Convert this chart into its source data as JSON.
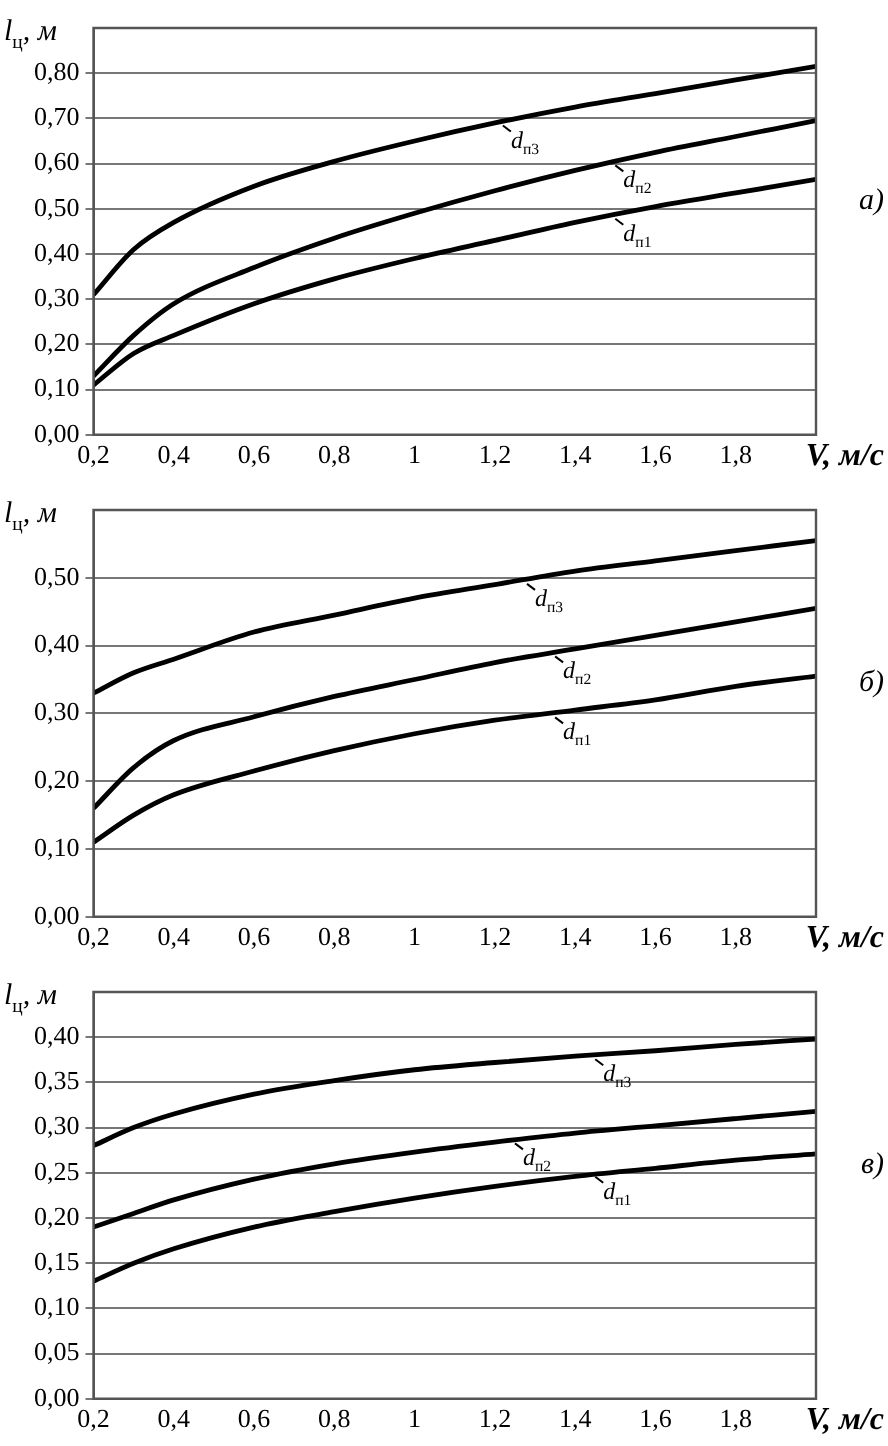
{
  "chart_data": [
    {
      "type": "line",
      "xticks": [
        {
          "value": 0.2,
          "label": "0,2"
        },
        {
          "value": 0.4,
          "label": "0,4"
        },
        {
          "value": 0.6,
          "label": "0,6"
        },
        {
          "value": 0.8,
          "label": "0,8"
        },
        {
          "value": 1,
          "label": "1"
        },
        {
          "value": 1.2,
          "label": "1,2"
        },
        {
          "value": 1.4,
          "label": "1,4"
        },
        {
          "value": 1.6,
          "label": "1,6"
        },
        {
          "value": 1.8,
          "label": "1,8"
        }
      ],
      "annotations": [
        "а)",
        {
          "text": "d$_{п1}$",
          "x": 1.5,
          "y": 0.487
        },
        {
          "text": "d$_{п2}$",
          "x": 1.5,
          "y": 0.605
        },
        {
          "text": "d$_{п3}$",
          "x": 1.22,
          "y": 0.693
        }
      ],
      "xlabel": "V, м/с",
      "ylabel": "l$_{ц}$, м",
      "x": [
        0.2,
        0.3,
        0.4,
        0.6,
        0.8,
        1.0,
        1.2,
        1.4,
        1.6,
        1.8,
        2.0
      ],
      "series": [
        {
          "color": "#000000",
          "values": [
            0.11,
            0.18,
            0.22,
            0.29,
            0.345,
            0.39,
            0.43,
            0.47,
            0.505,
            0.535,
            0.565
          ]
        },
        {
          "color": "#000000",
          "values": [
            0.13,
            0.22,
            0.29,
            0.37,
            0.435,
            0.49,
            0.54,
            0.585,
            0.625,
            0.66,
            0.695
          ]
        },
        {
          "color": "#000000",
          "values": [
            0.31,
            0.41,
            0.47,
            0.55,
            0.605,
            0.65,
            0.69,
            0.725,
            0.755,
            0.785,
            0.815
          ]
        }
      ],
      "xlim": [
        0.2,
        2.0
      ],
      "ylim": [
        0,
        0.9
      ],
      "yticks": [
        {
          "value": 0,
          "label": "0,00"
        },
        {
          "value": 0.1,
          "label": "0,10"
        },
        {
          "value": 0.2,
          "label": "0,20"
        },
        {
          "value": 0.3,
          "label": "0,30"
        },
        {
          "value": 0.4,
          "label": "0,40"
        },
        {
          "value": 0.5,
          "label": "0,50"
        },
        {
          "value": 0.6,
          "label": "0,60"
        },
        {
          "value": 0.7,
          "label": "0,70"
        },
        {
          "value": 0.8,
          "label": "0,80"
        }
      ],
      "grid": "y",
      "legend": false,
      "marker": "none",
      "line_style": "solid"
    },
    {
      "type": "line",
      "xticks": [
        {
          "value": 0.2,
          "label": "0,2"
        },
        {
          "value": 0.4,
          "label": "0,4"
        },
        {
          "value": 0.6,
          "label": "0,6"
        },
        {
          "value": 0.8,
          "label": "0,8"
        },
        {
          "value": 1,
          "label": "1"
        },
        {
          "value": 1.2,
          "label": "1,2"
        },
        {
          "value": 1.4,
          "label": "1,4"
        },
        {
          "value": 1.6,
          "label": "1,6"
        },
        {
          "value": 1.8,
          "label": "1,8"
        }
      ],
      "annotations": [
        "б)",
        {
          "text": "d$_{п1}$",
          "x": 1.35,
          "y": 0.3
        },
        {
          "text": "d$_{п2}$",
          "x": 1.35,
          "y": 0.39
        },
        {
          "text": "d$_{п3}$",
          "x": 1.28,
          "y": 0.497
        }
      ],
      "xlabel": "V, м/с",
      "ylabel": "l$_{ц}$, м",
      "x": [
        0.2,
        0.3,
        0.4,
        0.6,
        0.8,
        1.0,
        1.2,
        1.4,
        1.6,
        1.8,
        2.0
      ],
      "series": [
        {
          "color": "#000000",
          "values": [
            0.11,
            0.15,
            0.18,
            0.215,
            0.245,
            0.27,
            0.29,
            0.305,
            0.32,
            0.34,
            0.355
          ]
        },
        {
          "color": "#000000",
          "values": [
            0.16,
            0.22,
            0.26,
            0.295,
            0.325,
            0.35,
            0.375,
            0.395,
            0.415,
            0.435,
            0.455
          ]
        },
        {
          "color": "#000000",
          "values": [
            0.33,
            0.36,
            0.38,
            0.42,
            0.445,
            0.47,
            0.49,
            0.51,
            0.525,
            0.54,
            0.555
          ]
        }
      ],
      "xlim": [
        0.2,
        2.0
      ],
      "ylim": [
        0,
        0.6
      ],
      "yticks": [
        {
          "value": 0,
          "label": "0,00"
        },
        {
          "value": 0.1,
          "label": "0,10"
        },
        {
          "value": 0.2,
          "label": "0,20"
        },
        {
          "value": 0.3,
          "label": "0,30"
        },
        {
          "value": 0.4,
          "label": "0,40"
        },
        {
          "value": 0.5,
          "label": "0,50"
        }
      ],
      "grid": "y",
      "legend": false,
      "marker": "none",
      "line_style": "solid"
    },
    {
      "type": "line",
      "xticks": [
        {
          "value": 0.2,
          "label": "0,2"
        },
        {
          "value": 0.4,
          "label": "0,4"
        },
        {
          "value": 0.6,
          "label": "0,6"
        },
        {
          "value": 0.8,
          "label": "0,8"
        },
        {
          "value": 1,
          "label": "1"
        },
        {
          "value": 1.2,
          "label": "1,2"
        },
        {
          "value": 1.4,
          "label": "1,4"
        },
        {
          "value": 1.6,
          "label": "1,6"
        },
        {
          "value": 1.8,
          "label": "1,8"
        }
      ],
      "annotations": [
        "в)",
        {
          "text": "d$_{п1}$",
          "x": 1.45,
          "y": 0.25
        },
        {
          "text": "d$_{п2}$",
          "x": 1.25,
          "y": 0.287
        },
        {
          "text": "d$_{п3}$",
          "x": 1.45,
          "y": 0.38
        }
      ],
      "xlabel": "V, м/с",
      "ylabel": "l$_{ц}$, м",
      "x": [
        0.2,
        0.3,
        0.4,
        0.6,
        0.8,
        1.0,
        1.2,
        1.4,
        1.6,
        1.8,
        2.0
      ],
      "series": [
        {
          "color": "#000000",
          "values": [
            0.13,
            0.15,
            0.166,
            0.19,
            0.207,
            0.222,
            0.235,
            0.246,
            0.255,
            0.264,
            0.271
          ]
        },
        {
          "color": "#000000",
          "values": [
            0.19,
            0.205,
            0.22,
            0.243,
            0.26,
            0.273,
            0.284,
            0.294,
            0.302,
            0.31,
            0.318
          ]
        },
        {
          "color": "#000000",
          "values": [
            0.28,
            0.3,
            0.315,
            0.337,
            0.352,
            0.364,
            0.372,
            0.379,
            0.385,
            0.392,
            0.398
          ]
        }
      ],
      "xlim": [
        0.2,
        2.0
      ],
      "ylim": [
        0,
        0.45
      ],
      "yticks": [
        {
          "value": 0,
          "label": "0,00"
        },
        {
          "value": 0.05,
          "label": "0,05"
        },
        {
          "value": 0.1,
          "label": "0,10"
        },
        {
          "value": 0.15,
          "label": "0,15"
        },
        {
          "value": 0.2,
          "label": "0,20"
        },
        {
          "value": 0.25,
          "label": "0,25"
        },
        {
          "value": 0.3,
          "label": "0,30"
        },
        {
          "value": 0.35,
          "label": "0,35"
        },
        {
          "value": 0.4,
          "label": "0,40"
        }
      ],
      "grid": "y",
      "legend": false,
      "marker": "none",
      "line_style": "solid"
    }
  ]
}
